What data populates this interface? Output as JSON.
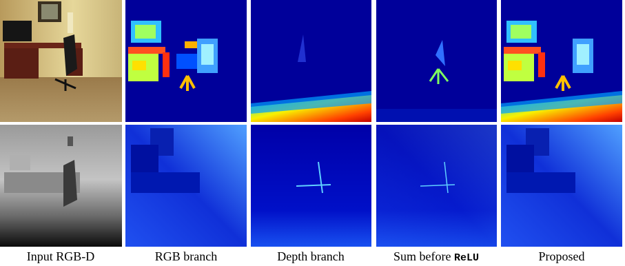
{
  "figure": {
    "columns": [
      {
        "caption": "Input RGB-D"
      },
      {
        "caption": "RGB branch"
      },
      {
        "caption": "Depth branch"
      },
      {
        "caption": "Sum before",
        "caption_code": "ReLU"
      },
      {
        "caption": "Proposed"
      }
    ]
  }
}
